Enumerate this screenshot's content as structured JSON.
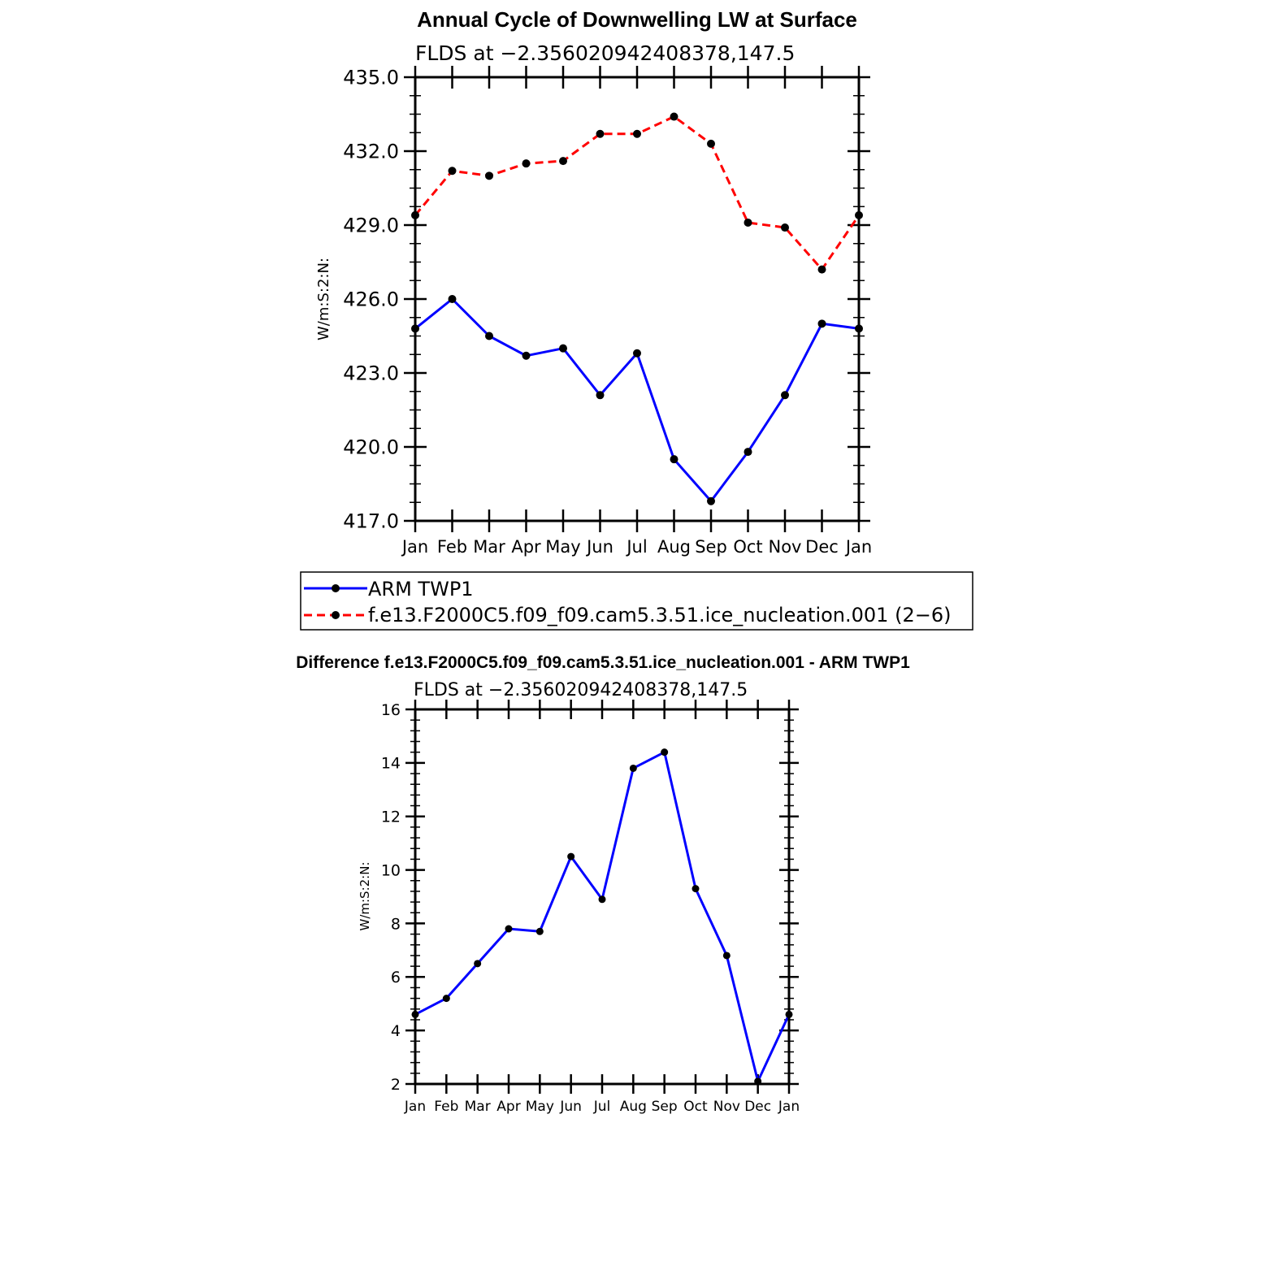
{
  "chart_data": [
    {
      "type": "line",
      "title": "Annual Cycle of Downwelling LW at Surface",
      "subtitle": "FLDS at −2.356020942408378,147.5",
      "ylabel": "W/m:S:2:N:",
      "xlabel": "",
      "categories": [
        "Jan",
        "Feb",
        "Mar",
        "Apr",
        "May",
        "Jun",
        "Jul",
        "Aug",
        "Sep",
        "Oct",
        "Nov",
        "Dec",
        "Jan"
      ],
      "ylim": [
        417.0,
        435.0
      ],
      "yticks": [
        "417.0",
        "420.0",
        "423.0",
        "426.0",
        "429.0",
        "432.0",
        "435.0"
      ],
      "legend_position": "bottom",
      "series": [
        {
          "name": "ARM TWP1",
          "color": "#0000ff",
          "dash": "solid",
          "values": [
            424.8,
            426.0,
            424.5,
            423.7,
            424.0,
            422.1,
            423.8,
            419.5,
            417.8,
            419.8,
            422.1,
            425.0,
            424.8
          ]
        },
        {
          "name": "f.e13.F2000C5.f09_f09.cam5.3.51.ice_nucleation.001 (2−6)",
          "color": "#ff0000",
          "dash": "dashed",
          "values": [
            429.4,
            431.2,
            431.0,
            431.5,
            431.6,
            432.7,
            432.7,
            433.4,
            432.3,
            429.1,
            428.9,
            427.2,
            429.4
          ]
        }
      ]
    },
    {
      "type": "line",
      "title": "Difference f.e13.F2000C5.f09_f09.cam5.3.51.ice_nucleation.001 - ARM TWP1",
      "subtitle": "FLDS at −2.356020942408378,147.5",
      "ylabel": "W/m:S:2:N:",
      "xlabel": "",
      "categories": [
        "Jan",
        "Feb",
        "Mar",
        "Apr",
        "May",
        "Jun",
        "Jul",
        "Aug",
        "Sep",
        "Oct",
        "Nov",
        "Dec",
        "Jan"
      ],
      "ylim": [
        2,
        16
      ],
      "yticks": [
        "2",
        "4",
        "6",
        "8",
        "10",
        "12",
        "14",
        "16"
      ],
      "series": [
        {
          "color": "#0000ff",
          "dash": "solid",
          "values": [
            4.6,
            5.2,
            6.5,
            7.8,
            7.7,
            10.5,
            8.9,
            13.8,
            14.4,
            9.3,
            6.8,
            2.1,
            4.6
          ]
        }
      ]
    }
  ]
}
